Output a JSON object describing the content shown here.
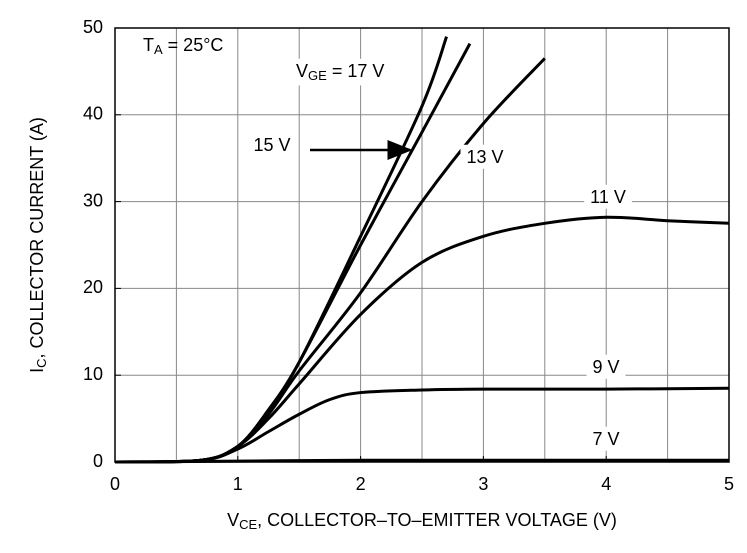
{
  "chart_data": {
    "type": "line",
    "annotation": [
      "T",
      "A",
      " = 25°C"
    ],
    "vge_label": [
      "V",
      "GE",
      " = "
    ],
    "x_label": [
      "V",
      "CE",
      ", COLLECTOR–TO–EMITTER VOLTAGE (V)"
    ],
    "y_label": [
      "I",
      "C",
      ", COLLECTOR CURRENT (A)"
    ],
    "xlim": [
      0,
      5
    ],
    "ylim": [
      0,
      50
    ],
    "xticks": [
      0,
      1,
      2,
      3,
      4,
      5
    ],
    "yticks": [
      0,
      10,
      20,
      30,
      40,
      50
    ],
    "x_gridlines": [
      0.5,
      1,
      1.5,
      2,
      2.5,
      3,
      3.5,
      4,
      4.5
    ],
    "y_gridlines": [
      10,
      20,
      30,
      40
    ],
    "grid": true,
    "series": [
      {
        "name": "17 V",
        "color": "#000000",
        "x": [
          0,
          0.7,
          1,
          1.25,
          1.5,
          2,
          2.5,
          2.7
        ],
        "values": [
          0,
          0.2,
          1.8,
          6,
          11.5,
          26,
          41,
          49
        ]
      },
      {
        "name": "15 V",
        "color": "#000000",
        "x": [
          0,
          0.7,
          1,
          1.25,
          1.5,
          2,
          2.5,
          2.89
        ],
        "values": [
          0,
          0.2,
          1.8,
          6,
          11.5,
          25,
          38,
          48.2
        ]
      },
      {
        "name": "13 V",
        "color": "#000000",
        "x": [
          0,
          0.7,
          1,
          1.25,
          1.5,
          2,
          2.5,
          3,
          3.5
        ],
        "values": [
          0,
          0.2,
          1.8,
          5.5,
          10.5,
          19.5,
          30,
          39,
          46.5
        ]
      },
      {
        "name": "11 V",
        "color": "#000000",
        "x": [
          0,
          0.7,
          1,
          1.25,
          1.5,
          2,
          2.5,
          3,
          3.5,
          4,
          4.5,
          5
        ],
        "values": [
          0,
          0.2,
          1.8,
          5,
          9,
          17,
          23,
          26,
          27.5,
          28.2,
          27.8,
          27.5
        ]
      },
      {
        "name": "9 V",
        "color": "#000000",
        "x": [
          0,
          0.7,
          1,
          1.25,
          1.5,
          1.75,
          2,
          2.5,
          3,
          4,
          5
        ],
        "values": [
          0,
          0.2,
          1.5,
          3.5,
          5.5,
          7.2,
          8,
          8.3,
          8.4,
          8.4,
          8.5
        ]
      },
      {
        "name": "7 V",
        "color": "#000000",
        "x": [
          0,
          1,
          2,
          3,
          4,
          5
        ],
        "values": [
          0,
          0.1,
          0.2,
          0.2,
          0.2,
          0.2
        ]
      }
    ]
  }
}
